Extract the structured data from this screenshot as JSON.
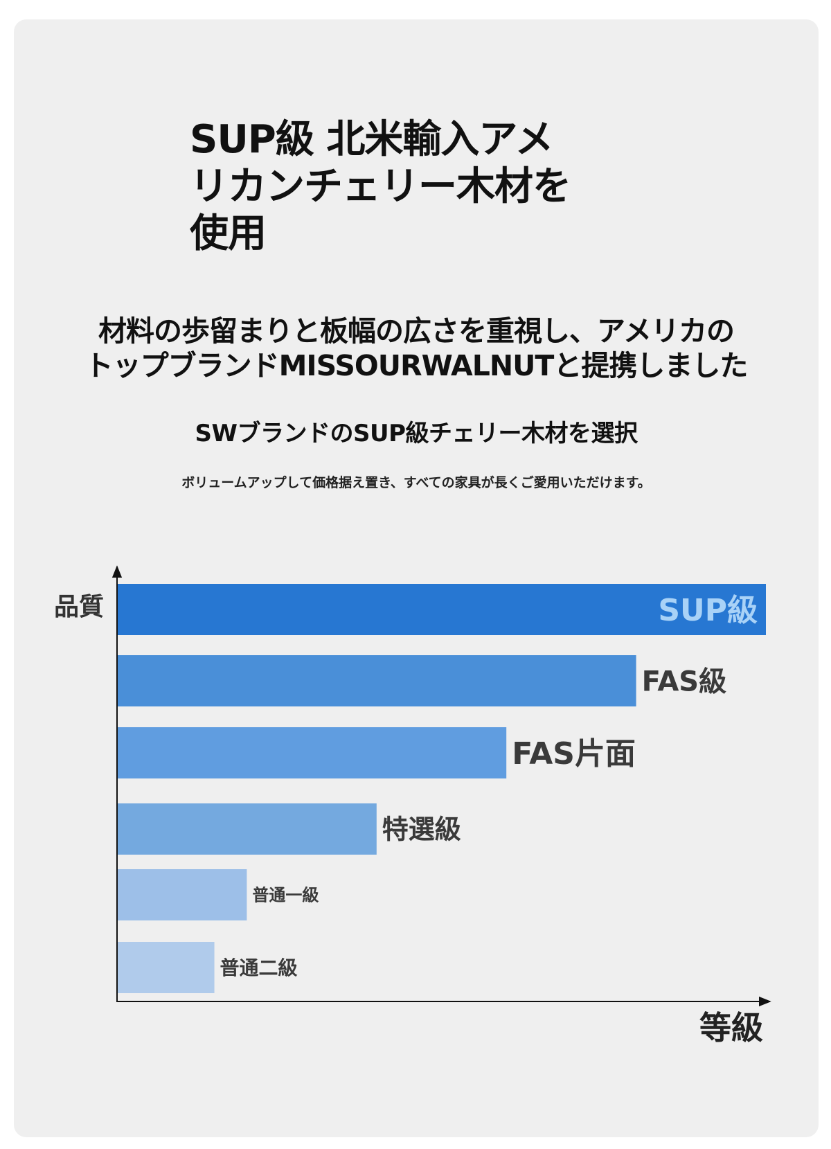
{
  "header": {
    "title": "SUP級 北米輸入アメ\nリカンチェリー木材を\n使用",
    "headline": "材料の歩留まりと板幅の広さを重視し、アメリカの\nトップブランドMISSOURWALNUTと提携しました",
    "subhead": "SWブランドのSUP級チェリー木材を選択",
    "note": "ボリュームアップして価格据え置き、すべての家具が長くご愛用いただけます。"
  },
  "chart_data": {
    "type": "bar",
    "orientation": "horizontal",
    "title": "",
    "ylabel": "品質",
    "xlabel": "等級",
    "categories": [
      "SUP級",
      "FAS級",
      "FAS片面",
      "特選級",
      "普通一級",
      "普通二級"
    ],
    "values": [
      100,
      80,
      60,
      40,
      20,
      15
    ],
    "xlim": [
      0,
      100
    ],
    "axis_ticks": false,
    "grid": false,
    "colors": [
      "#2777d2",
      "#4a8fd8",
      "#609de0",
      "#74a9df",
      "#9dbfe8",
      "#b0cbeb"
    ],
    "label_colors": [
      "#a9d2f7",
      "#3a3a3a",
      "#3a3a3a",
      "#3a3a3a",
      "#3a3a3a",
      "#3a3a3a"
    ]
  }
}
